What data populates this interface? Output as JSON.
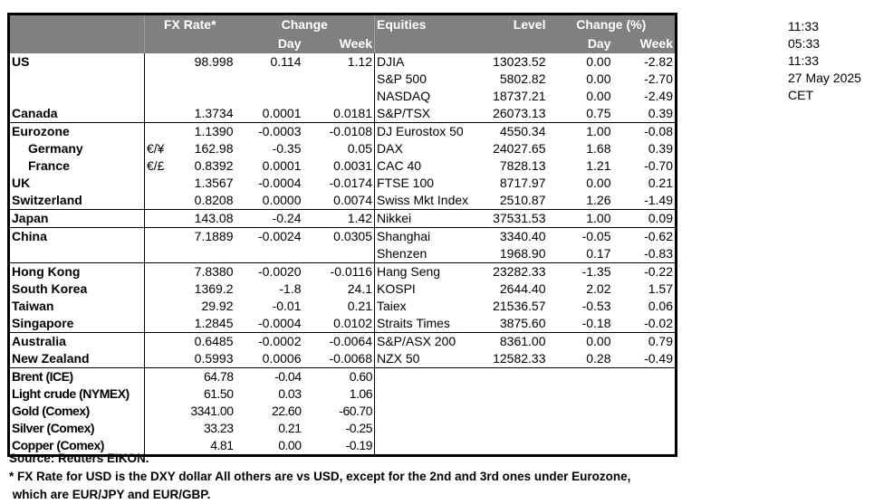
{
  "header": {
    "fx_rate": "FX Rate*",
    "change": "Change",
    "day": "Day",
    "week": "Week",
    "equities": "Equities",
    "level": "Level",
    "change_pct": "Change (%)",
    "eq_day": "Day",
    "eq_week": "Week"
  },
  "rows": [
    {
      "label": "US",
      "fx": "98.998",
      "day": "0.114",
      "week": "1.12",
      "eq": "DJIA",
      "level": "13023.52",
      "eqday": "0.00",
      "eqweek": "-2.82"
    },
    {
      "label": "",
      "fx": "",
      "day": "",
      "week": "",
      "eq": "S&P 500",
      "level": "5802.82",
      "eqday": "0.00",
      "eqweek": "-2.70"
    },
    {
      "label": "",
      "fx": "",
      "day": "",
      "week": "",
      "eq": "NASDAQ",
      "level": "18737.21",
      "eqday": "0.00",
      "eqweek": "-2.49"
    },
    {
      "label": "Canada",
      "fx": "1.3734",
      "day": "0.0001",
      "week": "0.0181",
      "eq": "S&P/TSX",
      "level": "26073.13",
      "eqday": "0.75",
      "eqweek": "0.39"
    },
    {
      "label": "Eurozone",
      "sep": true,
      "fx": "1.1390",
      "day": "-0.0003",
      "week": "-0.0108",
      "eq": "DJ Eurostox 50",
      "level": "4550.34",
      "eqday": "1.00",
      "eqweek": "-0.08"
    },
    {
      "label": "Germany",
      "indent": true,
      "pair": "€/¥",
      "fx": "162.98",
      "day": "-0.35",
      "week": "0.05",
      "eq": "DAX",
      "level": "24027.65",
      "eqday": "1.68",
      "eqweek": "0.39"
    },
    {
      "label": "France",
      "indent": true,
      "pair": "€/£",
      "fx": "0.8392",
      "day": "0.0001",
      "week": "0.0031",
      "eq": "CAC 40",
      "level": "7828.13",
      "eqday": "1.21",
      "eqweek": "-0.70"
    },
    {
      "label": "UK",
      "fx": "1.3567",
      "day": "-0.0004",
      "week": "-0.0174",
      "eq": "FTSE 100",
      "level": "8717.97",
      "eqday": "0.00",
      "eqweek": "0.21"
    },
    {
      "label": "Switzerland",
      "fx": "0.8208",
      "day": "0.0000",
      "week": "0.0074",
      "eq": "Swiss Mkt Index",
      "level": "2510.87",
      "eqday": "1.26",
      "eqweek": "-1.49"
    },
    {
      "label": "Japan",
      "sep": true,
      "fx": "143.08",
      "day": "-0.24",
      "week": "1.42",
      "eq": "Nikkei",
      "level": "37531.53",
      "eqday": "1.00",
      "eqweek": "0.09"
    },
    {
      "label": "China",
      "sep": true,
      "fx": "7.1889",
      "day": "-0.0024",
      "week": "0.0305",
      "eq": "Shanghai",
      "level": "3340.40",
      "eqday": "-0.05",
      "eqweek": "-0.62"
    },
    {
      "label": "",
      "fx": "",
      "day": "",
      "week": "",
      "eq": "Shenzen",
      "level": "1968.90",
      "eqday": "0.17",
      "eqweek": "-0.83"
    },
    {
      "label": "Hong Kong",
      "sep": true,
      "fx": "7.8380",
      "day": "-0.0020",
      "week": "-0.0116",
      "eq": "Hang Seng",
      "level": "23282.33",
      "eqday": "-1.35",
      "eqweek": "-0.22"
    },
    {
      "label": "South Korea",
      "fx": "1369.2",
      "day": "-1.8",
      "week": "24.1",
      "eq": "KOSPI",
      "level": "2644.40",
      "eqday": "2.02",
      "eqweek": "1.57"
    },
    {
      "label": "Taiwan",
      "fx": "29.92",
      "day": "-0.01",
      "week": "0.21",
      "eq": "Taiex",
      "level": "21536.57",
      "eqday": "-0.53",
      "eqweek": "0.06"
    },
    {
      "label": "Singapore",
      "fx": "1.2845",
      "day": "-0.0004",
      "week": "0.0102",
      "eq": "Straits Times",
      "level": "3875.60",
      "eqday": "-0.18",
      "eqweek": "-0.02"
    },
    {
      "label": "Australia",
      "sep": true,
      "fx": "0.6485",
      "day": "-0.0002",
      "week": "-0.0064",
      "eq": "S&P/ASX  200",
      "level": "8361.00",
      "eqday": "0.00",
      "eqweek": "0.79"
    },
    {
      "label": "New Zealand",
      "fx": "0.5993",
      "day": "0.0006",
      "week": "-0.0068",
      "eq": "NZX 50",
      "level": "12582.33",
      "eqday": "0.28",
      "eqweek": "-0.49"
    },
    {
      "label": "Brent (ICE)",
      "sep": true,
      "cond": true,
      "fx": "64.78",
      "day": "-0.04",
      "week": "0.60",
      "eq": "",
      "level": "",
      "eqday": "",
      "eqweek": ""
    },
    {
      "label": "Light crude (NYMEX)",
      "cond": true,
      "fx": "61.50",
      "day": "0.03",
      "week": "1.06",
      "eq": "",
      "level": "",
      "eqday": "",
      "eqweek": ""
    },
    {
      "label": "Gold (Comex)",
      "cond": true,
      "fx": "3341.00",
      "day": "22.60",
      "week": "-60.70",
      "eq": "",
      "level": "",
      "eqday": "",
      "eqweek": ""
    },
    {
      "label": "Silver (Comex)",
      "cond": true,
      "fx": "33.23",
      "day": "0.21",
      "week": "-0.25",
      "eq": "",
      "level": "",
      "eqday": "",
      "eqweek": ""
    },
    {
      "label": "Copper (Comex)",
      "cond": true,
      "fx": "4.81",
      "day": "0.00",
      "week": "-0.19",
      "eq": "",
      "level": "",
      "eqday": "",
      "eqweek": ""
    }
  ],
  "side": {
    "time1": "11:33",
    "time2": "05:33",
    "time3": "11:33",
    "date": "27 May 2025",
    "tz": "CET"
  },
  "notes": {
    "source": "Source:  Reuters EIKON.",
    "footnote1": "* FX Rate for USD is the DXY dollar  All others are vs USD, except for the 2nd and 3rd ones under Eurozone,",
    "footnote2": " which are EUR/JPY and EUR/GBP."
  }
}
